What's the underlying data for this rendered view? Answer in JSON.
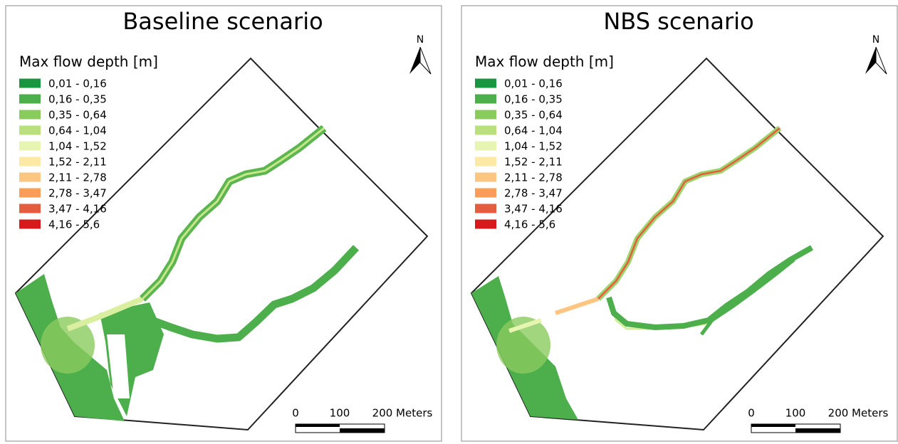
{
  "panels": [
    {
      "title": "Baseline scenario",
      "legend": {
        "title": "Max flow depth [m]",
        "items": [
          {
            "label": "0,01 - 0,16",
            "color": "#1a9641"
          },
          {
            "label": "0,16 - 0,35",
            "color": "#4caf4c"
          },
          {
            "label": "0,35 - 0,64",
            "color": "#8acb5e"
          },
          {
            "label": "0,64 - 1,04",
            "color": "#b9e07c"
          },
          {
            "label": "1,04 - 1,52",
            "color": "#e6f5b0"
          },
          {
            "label": "1,52 - 2,11",
            "color": "#fde9a6"
          },
          {
            "label": "2,11 - 2,78",
            "color": "#fdc582"
          },
          {
            "label": "2,78 - 3,47",
            "color": "#f99d59"
          },
          {
            "label": "3,47 - 4,16",
            "color": "#e45d3e"
          },
          {
            "label": "4,16 - 5,6",
            "color": "#d7191c"
          }
        ]
      },
      "north": "N",
      "scale": [
        "0",
        "100",
        "200 Meters"
      ]
    },
    {
      "title": "NBS scenario",
      "legend": {
        "title": "Max flow depth [m]",
        "items": [
          {
            "label": "0,01 - 0,16",
            "color": "#1a9641"
          },
          {
            "label": "0,16 - 0,35",
            "color": "#4caf4c"
          },
          {
            "label": "0,35 - 0,64",
            "color": "#8acb5e"
          },
          {
            "label": "0,64 - 1,04",
            "color": "#b9e07c"
          },
          {
            "label": "1,04 - 1,52",
            "color": "#e6f5b0"
          },
          {
            "label": "1,52 - 2,11",
            "color": "#fde9a6"
          },
          {
            "label": "2,11 - 2,78",
            "color": "#fdc582"
          },
          {
            "label": "2,78 - 3,47",
            "color": "#f99d59"
          },
          {
            "label": "3,47 - 4,16",
            "color": "#e45d3e"
          },
          {
            "label": "4,16 - 5,6",
            "color": "#d7191c"
          }
        ]
      },
      "north": "N",
      "scale": [
        "0",
        "100",
        "200 Meters"
      ]
    }
  ]
}
